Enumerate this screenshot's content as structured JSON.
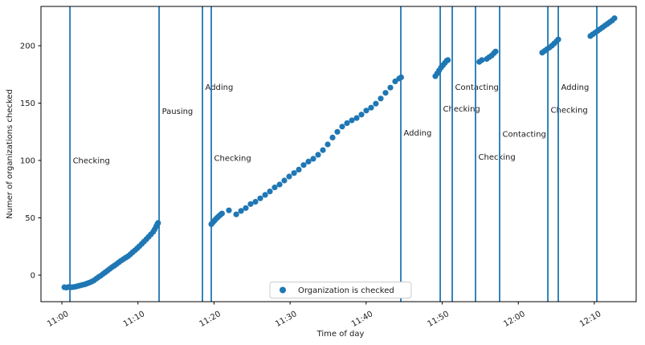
{
  "chart_data": {
    "type": "scatter",
    "title": "",
    "xlabel": "Time of day",
    "ylabel": "Numer of organizations checked",
    "legend_label": "Organization is checked",
    "legend_position": "lower center",
    "grid": false,
    "accent_color": "#1f77b4",
    "marker": "circle",
    "x_axis": {
      "unit": "minutes since 11:00",
      "tick_minutes": [
        0,
        10,
        20,
        30,
        40,
        50,
        60,
        70
      ],
      "tick_labels": [
        "11:00",
        "11:10",
        "11:20",
        "11:30",
        "11:40",
        "11:50",
        "12:00",
        "12:10"
      ],
      "tick_rotation_deg": 30,
      "xlim_minutes": [
        -2.75,
        75.5
      ]
    },
    "y_axis": {
      "ticks": [
        0,
        50,
        100,
        150,
        200
      ],
      "ylim": [
        -23.1,
        234.3
      ]
    },
    "event_lines": [
      {
        "t_min": 1.06,
        "label": "Checking",
        "label_value": 100
      },
      {
        "t_min": 12.78,
        "label": "Pausing",
        "label_value": 143
      },
      {
        "t_min": 18.48,
        "label": "Adding",
        "label_value": 164
      },
      {
        "t_min": 19.64,
        "label": "Checking",
        "label_value": 102
      },
      {
        "t_min": 44.56,
        "label": "Adding",
        "label_value": 124
      },
      {
        "t_min": 49.74,
        "label": "Checking",
        "label_value": 145
      },
      {
        "t_min": 51.32,
        "label": "Contacting",
        "label_value": 164
      },
      {
        "t_min": 54.38,
        "label": "Checking",
        "label_value": 103
      },
      {
        "t_min": 57.55,
        "label": "Contacting",
        "label_value": 123
      },
      {
        "t_min": 63.89,
        "label": "Checking",
        "label_value": 144
      },
      {
        "t_min": 65.26,
        "label": "Adding",
        "label_value": 164
      },
      {
        "t_min": 70.33,
        "label": "",
        "label_value": 0
      }
    ],
    "series": [
      {
        "name": "Organization is checked",
        "color": "#1f77b4",
        "points": [
          [
            0.32,
            -10.5
          ],
          [
            0.6,
            -10.8
          ],
          [
            0.9,
            -10.3
          ],
          [
            1.2,
            -10.6
          ],
          [
            1.5,
            -10.4
          ],
          [
            1.8,
            -10.0
          ],
          [
            2.1,
            -9.5
          ],
          [
            2.4,
            -9.0
          ],
          [
            2.7,
            -8.5
          ],
          [
            3.0,
            -8.0
          ],
          [
            3.3,
            -7.3
          ],
          [
            3.6,
            -6.5
          ],
          [
            3.9,
            -5.7
          ],
          [
            4.2,
            -4.6
          ],
          [
            4.5,
            -3.2
          ],
          [
            4.8,
            -1.8
          ],
          [
            5.1,
            -0.5
          ],
          [
            5.4,
            1.0
          ],
          [
            5.7,
            2.5
          ],
          [
            6.0,
            4.0
          ],
          [
            6.3,
            5.5
          ],
          [
            6.6,
            7.0
          ],
          [
            6.9,
            8.3
          ],
          [
            7.2,
            9.7
          ],
          [
            7.5,
            11.3
          ],
          [
            7.8,
            12.7
          ],
          [
            8.1,
            14.0
          ],
          [
            8.4,
            15.3
          ],
          [
            8.7,
            16.5
          ],
          [
            9.0,
            18.2
          ],
          [
            9.3,
            20.0
          ],
          [
            9.6,
            21.7
          ],
          [
            9.9,
            23.4
          ],
          [
            10.2,
            25.3
          ],
          [
            10.5,
            27.3
          ],
          [
            10.8,
            29.3
          ],
          [
            11.1,
            31.3
          ],
          [
            11.4,
            33.4
          ],
          [
            11.7,
            35.5
          ],
          [
            12.0,
            37.8
          ],
          [
            12.2,
            40.0
          ],
          [
            12.4,
            42.5
          ],
          [
            12.55,
            44.5
          ],
          [
            12.65,
            45.5
          ],
          [
            19.65,
            44.5
          ],
          [
            19.85,
            46.0
          ],
          [
            20.05,
            47.5
          ],
          [
            20.25,
            49.0
          ],
          [
            20.45,
            50.3
          ],
          [
            20.65,
            51.5
          ],
          [
            20.85,
            52.7
          ],
          [
            21.05,
            53.8
          ],
          [
            21.96,
            56.5
          ],
          [
            22.92,
            53.0
          ],
          [
            23.55,
            56.0
          ],
          [
            24.18,
            58.5
          ],
          [
            24.81,
            62.0
          ],
          [
            25.45,
            64.0
          ],
          [
            26.08,
            67.0
          ],
          [
            26.72,
            70.0
          ],
          [
            27.35,
            73.0
          ],
          [
            27.98,
            76.5
          ],
          [
            28.62,
            79.0
          ],
          [
            29.25,
            82.5
          ],
          [
            29.88,
            86.0
          ],
          [
            30.52,
            89.0
          ],
          [
            31.15,
            92.0
          ],
          [
            31.78,
            96.0
          ],
          [
            32.42,
            99.0
          ],
          [
            33.05,
            101.5
          ],
          [
            33.68,
            105.0
          ],
          [
            34.32,
            109.0
          ],
          [
            34.95,
            114.0
          ],
          [
            35.58,
            120.0
          ],
          [
            36.22,
            125.0
          ],
          [
            36.85,
            129.5
          ],
          [
            37.48,
            132.5
          ],
          [
            38.12,
            135.0
          ],
          [
            38.75,
            137.0
          ],
          [
            39.38,
            140.0
          ],
          [
            40.02,
            143.5
          ],
          [
            40.65,
            146.0
          ],
          [
            41.28,
            149.5
          ],
          [
            41.92,
            154.0
          ],
          [
            42.55,
            159.0
          ],
          [
            43.19,
            163.5
          ],
          [
            43.82,
            169.0
          ],
          [
            44.35,
            171.5
          ],
          [
            44.6,
            172.5
          ],
          [
            49.1,
            173.5
          ],
          [
            49.35,
            176.0
          ],
          [
            49.6,
            178.5
          ],
          [
            49.85,
            181.0
          ],
          [
            50.1,
            183.0
          ],
          [
            50.35,
            185.0
          ],
          [
            50.6,
            187.0
          ],
          [
            50.75,
            187.5
          ],
          [
            54.88,
            186.0
          ],
          [
            55.2,
            187.5
          ],
          [
            55.86,
            188.5
          ],
          [
            56.18,
            190.0
          ],
          [
            56.5,
            191.5
          ],
          [
            56.8,
            193.5
          ],
          [
            57.02,
            195.0
          ],
          [
            63.15,
            194.0
          ],
          [
            63.46,
            195.5
          ],
          [
            63.78,
            197.0
          ],
          [
            64.1,
            198.5
          ],
          [
            64.41,
            200.0
          ],
          [
            64.73,
            202.0
          ],
          [
            65.05,
            204.0
          ],
          [
            65.26,
            205.5
          ],
          [
            69.48,
            208.5
          ],
          [
            69.8,
            210.0
          ],
          [
            70.12,
            211.5
          ],
          [
            70.43,
            213.0
          ],
          [
            70.75,
            214.5
          ],
          [
            71.07,
            216.0
          ],
          [
            71.38,
            217.5
          ],
          [
            71.7,
            219.0
          ],
          [
            72.02,
            220.5
          ],
          [
            72.33,
            222.0
          ],
          [
            72.65,
            224.0
          ]
        ]
      }
    ]
  }
}
